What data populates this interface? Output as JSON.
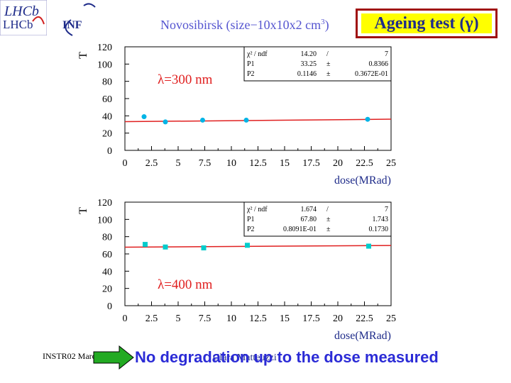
{
  "header": {
    "subtitle": "Novosibirsk (size−10x10x2 cm",
    "subtitle_sup": "3",
    "subtitle_end": ")",
    "title": "Ageing test (γ)"
  },
  "logos": {
    "lhcb_line1": "LHCb",
    "lhcb_line2": "LHCb",
    "inf": "INF"
  },
  "footer": {
    "left": "INSTR02  March 2002",
    "center": "Clara Matteuzzi",
    "conclusion": "No degradation up to the dose measured"
  },
  "colors": {
    "red_line": "#e02020",
    "top_marker": "#00b4e6",
    "bottom_marker": "#00cccc",
    "title_box_fill": "#ffff00",
    "title_border": "#a01010"
  },
  "chart_data": [
    {
      "type": "scatter",
      "annotation": "λ=300 nm",
      "ylabel": "T",
      "xlabel": "dose(MRad)",
      "xlim": [
        0,
        25
      ],
      "ylim": [
        0,
        120
      ],
      "x_ticks": [
        "0",
        "2.5",
        "5",
        "7.5",
        "10",
        "12.5",
        "15",
        "17.5",
        "20",
        "22.5",
        "25"
      ],
      "y_ticks": [
        "0",
        "20",
        "40",
        "60",
        "80",
        "100",
        "120"
      ],
      "marker": "circle",
      "points": [
        {
          "x": 1.8,
          "y": 39
        },
        {
          "x": 3.8,
          "y": 33
        },
        {
          "x": 7.3,
          "y": 35
        },
        {
          "x": 11.4,
          "y": 35
        },
        {
          "x": 22.8,
          "y": 36
        }
      ],
      "fit": {
        "p1": 33.25,
        "p2": 0.1146
      },
      "stats_box": [
        [
          "χ² / ndf",
          "14.20",
          "/",
          "7"
        ],
        [
          "P1",
          "33.25",
          "±",
          "0.8366"
        ],
        [
          "P2",
          "0.1146",
          "±",
          "0.3672E-01"
        ]
      ]
    },
    {
      "type": "scatter",
      "annotation": "λ=400 nm",
      "ylabel": "T",
      "xlabel": "dose(MRad)",
      "xlim": [
        0,
        25
      ],
      "ylim": [
        0,
        120
      ],
      "x_ticks": [
        "0",
        "2.5",
        "5",
        "7.5",
        "10",
        "12.5",
        "15",
        "17.5",
        "20",
        "22.5",
        "25"
      ],
      "y_ticks": [
        "0",
        "20",
        "40",
        "60",
        "80",
        "100",
        "120"
      ],
      "marker": "square",
      "points": [
        {
          "x": 1.9,
          "y": 71
        },
        {
          "x": 3.8,
          "y": 68
        },
        {
          "x": 7.4,
          "y": 67
        },
        {
          "x": 11.5,
          "y": 70
        },
        {
          "x": 22.9,
          "y": 69
        }
      ],
      "fit": {
        "p1": 67.8,
        "p2": 0.08
      },
      "stats_box": [
        [
          "χ² / ndf",
          "1.674",
          "/",
          "7"
        ],
        [
          "P1",
          "67.80",
          "±",
          "1.743"
        ],
        [
          "P2",
          "0.8091E-01",
          "±",
          "0.1730"
        ]
      ]
    }
  ]
}
